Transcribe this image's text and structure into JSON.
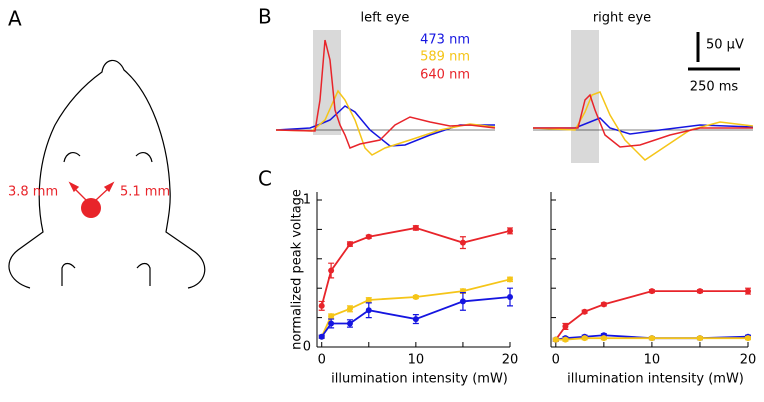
{
  "panel_labels": [
    "A",
    "B",
    "C"
  ],
  "panel_a": {
    "distances": [
      "3.8 mm",
      "5.1 mm"
    ]
  },
  "panel_b": {
    "titles": [
      "left eye",
      "right eye"
    ],
    "legend": [
      {
        "name": "473 nm",
        "color": "#1515e0"
      },
      {
        "name": "589 nm",
        "color": "#f5c518"
      },
      {
        "name": "640 nm",
        "color": "#e8242a"
      }
    ],
    "scale_bars": [
      "50 μV",
      "250 ms"
    ]
  },
  "chart_data": [
    {
      "type": "line",
      "ylabel": "normalized peak voltage",
      "xlabel": "illumination intensity (mW)",
      "x": [
        0,
        1,
        3,
        5,
        10,
        15,
        20
      ],
      "xlim": [
        -0.5,
        20
      ],
      "ylim": [
        0,
        1
      ],
      "xticks": [
        0,
        10,
        20
      ],
      "minor_xticks": [
        5,
        15
      ],
      "yticks": [
        0,
        1
      ],
      "minor_yticks": [
        0.2,
        0.4,
        0.6,
        0.8
      ],
      "series": [
        {
          "name": "640 nm",
          "color": "#e8242a",
          "values": [
            0.28,
            0.52,
            0.7,
            0.75,
            0.81,
            0.71,
            0.79
          ],
          "errors": [
            0.03,
            0.05,
            0.015,
            0.01,
            0.015,
            0.04,
            0.02
          ]
        },
        {
          "name": "589 nm",
          "color": "#f5c518",
          "values": [
            0.07,
            0.21,
            0.26,
            0.32,
            0.34,
            0.38,
            0.46
          ],
          "errors": [
            0.01,
            0.015,
            0.02,
            0.015,
            0.01,
            0.015,
            0.015
          ]
        },
        {
          "name": "473 nm",
          "color": "#1515e0",
          "values": [
            0.07,
            0.16,
            0.16,
            0.25,
            0.19,
            0.31,
            0.34
          ],
          "errors": [
            0.01,
            0.03,
            0.025,
            0.05,
            0.03,
            0.06,
            0.06
          ]
        }
      ]
    },
    {
      "type": "line",
      "xlabel": "illumination intensity (mW)",
      "x": [
        0,
        1,
        3,
        5,
        10,
        15,
        20
      ],
      "xlim": [
        -0.5,
        20
      ],
      "ylim": [
        0,
        1
      ],
      "xticks": [
        0,
        10,
        20
      ],
      "minor_xticks": [
        5,
        15
      ],
      "minor_yticks": [
        0,
        0.2,
        0.4,
        0.6,
        0.8,
        1
      ],
      "series": [
        {
          "name": "640 nm",
          "color": "#e8242a",
          "values": [
            0.05,
            0.14,
            0.24,
            0.29,
            0.38,
            0.38,
            0.38
          ],
          "errors": [
            0.01,
            0.02,
            0.01,
            0.01,
            0.01,
            0.01,
            0.02
          ]
        },
        {
          "name": "473 nm",
          "color": "#1515e0",
          "values": [
            0.05,
            0.06,
            0.07,
            0.08,
            0.06,
            0.06,
            0.07
          ],
          "errors": [
            0.01,
            0.01,
            0.01,
            0.01,
            0.01,
            0.01,
            0.01
          ]
        },
        {
          "name": "589 nm",
          "color": "#f5c518",
          "values": [
            0.05,
            0.05,
            0.06,
            0.06,
            0.06,
            0.06,
            0.06
          ],
          "errors": [
            0.01,
            0.01,
            0.01,
            0.01,
            0.01,
            0.01,
            0.01
          ]
        }
      ]
    }
  ]
}
